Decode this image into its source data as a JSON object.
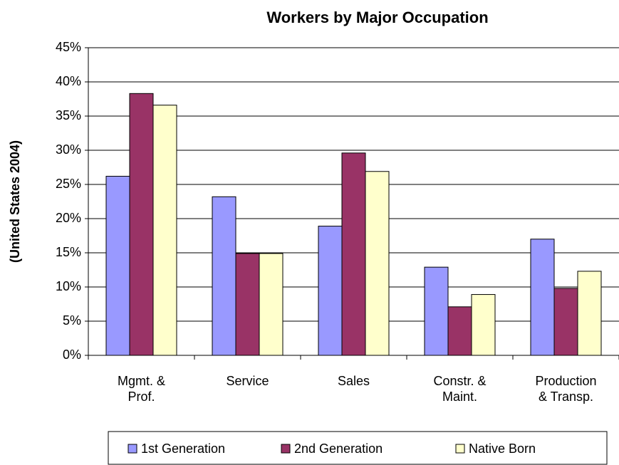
{
  "chart_data": {
    "type": "bar",
    "title": "Workers by Major Occupation",
    "y_label": "(United States 2004)",
    "categories": [
      "Mgmt. & Prof.",
      "Service",
      "Sales",
      "Constr. & Maint.",
      "Production & Transp."
    ],
    "series": [
      {
        "name": "1st Generation",
        "color": "#9999ff",
        "values": [
          26.2,
          23.2,
          18.9,
          12.9,
          17.0
        ]
      },
      {
        "name": "2nd Generation",
        "color": "#993366",
        "values": [
          38.3,
          14.9,
          29.6,
          7.1,
          9.8
        ]
      },
      {
        "name": "Native Born",
        "color": "#ffffcc",
        "values": [
          36.6,
          14.9,
          26.9,
          8.9,
          12.3
        ]
      }
    ],
    "ylim": [
      0,
      45
    ],
    "yticks": [
      {
        "value": 0,
        "label": "0%"
      },
      {
        "value": 5,
        "label": "5%"
      },
      {
        "value": 10,
        "label": "10%"
      },
      {
        "value": 15,
        "label": "15%"
      },
      {
        "value": 20,
        "label": "20%"
      },
      {
        "value": 25,
        "label": "25%"
      },
      {
        "value": 30,
        "label": "30%"
      },
      {
        "value": 35,
        "label": "35%"
      },
      {
        "value": 40,
        "label": "40%"
      },
      {
        "value": 45,
        "label": "45%"
      }
    ],
    "grid": true,
    "legend": "bottom"
  }
}
